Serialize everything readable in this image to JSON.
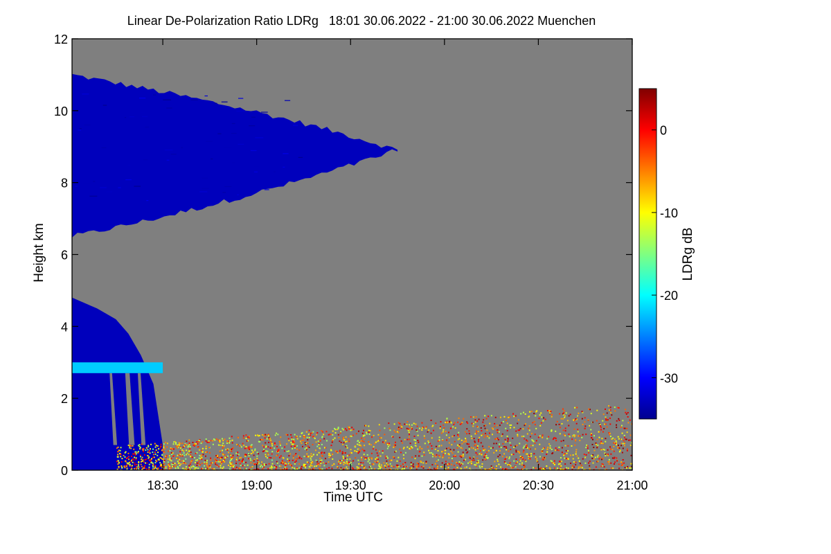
{
  "chart_data": {
    "type": "heatmap",
    "title": "Linear De-Polarization Ratio LDRg   18:01 30.06.2022 - 21:00 30.06.2022 Muenchen",
    "xlabel": "Time UTC",
    "ylabel": "Height km",
    "colorbar_label": "LDRg dB",
    "x_range": [
      "18:01",
      "21:00"
    ],
    "x_ticks": [
      "18:30",
      "19:00",
      "19:30",
      "20:00",
      "20:30",
      "21:00"
    ],
    "ylim": [
      0,
      12
    ],
    "y_ticks": [
      "0",
      "2",
      "4",
      "6",
      "8",
      "10",
      "12"
    ],
    "colorbar_range": [
      -35,
      5
    ],
    "colorbar_ticks": [
      "0",
      "-10",
      "-20",
      "-30"
    ],
    "no_data_color": "#7f7f7f",
    "colormap": [
      "#00008f",
      "#0000ff",
      "#0080ff",
      "#00ffff",
      "#80ff80",
      "#ffff00",
      "#ff8000",
      "#ff0000",
      "#800000"
    ],
    "features": [
      {
        "name": "Upper cloud layer",
        "time_range": [
          "18:01",
          "19:45"
        ],
        "height_km": [
          6.5,
          11.0
        ],
        "ldr_db": -33
      },
      {
        "name": "Lower cloud",
        "time_range": [
          "18:01",
          "18:30"
        ],
        "height_km": [
          0.0,
          4.8
        ],
        "ldr_db": -33
      },
      {
        "name": "Thin layer",
        "time_range": [
          "18:01",
          "18:30"
        ],
        "height_km": [
          2.7,
          3.0
        ],
        "ldr_db": -22
      },
      {
        "name": "Boundary layer",
        "time_range": [
          "18:15",
          "21:00"
        ],
        "height_km": [
          0.0,
          2.0
        ],
        "ldr_db": -8
      }
    ]
  }
}
